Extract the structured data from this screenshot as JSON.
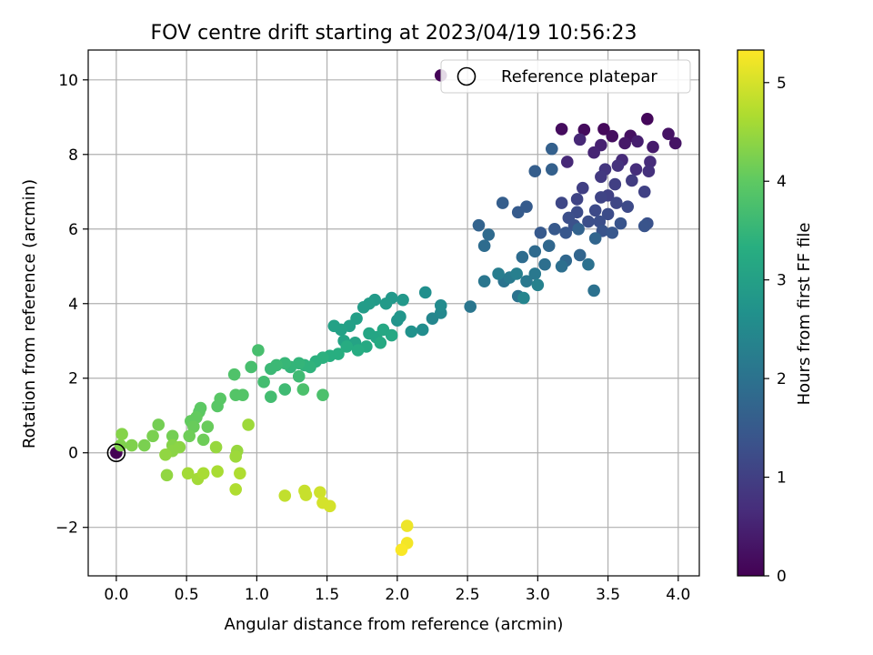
{
  "chart_data": {
    "type": "scatter",
    "title": "FOV centre drift starting at 2023/04/19 10:56:23",
    "xlabel": "Angular distance from reference (arcmin)",
    "ylabel": "Rotation from reference (arcmin)",
    "xlim": [
      -0.2,
      4.15
    ],
    "ylim": [
      -3.3,
      10.8
    ],
    "xticks": [
      "0.0",
      "0.5",
      "1.0",
      "1.5",
      "2.0",
      "2.5",
      "3.0",
      "3.5",
      "4.0"
    ],
    "yticks": [
      "−2",
      "0",
      "2",
      "4",
      "6",
      "8",
      "10"
    ],
    "xtick_values": [
      0,
      0.5,
      1.0,
      1.5,
      2.0,
      2.5,
      3.0,
      3.5,
      4.0
    ],
    "ytick_values": [
      -2,
      0,
      2,
      4,
      6,
      8,
      10
    ],
    "grid": true,
    "colormap": "viridis",
    "colorbar": {
      "label": "Hours from first FF file",
      "range": [
        0,
        5.33
      ],
      "ticks": [
        "0",
        "1",
        "2",
        "3",
        "4",
        "5"
      ],
      "tick_values": [
        0,
        1,
        2,
        3,
        4,
        5
      ]
    },
    "legend": {
      "position": "top-right",
      "entries": [
        {
          "label": "Reference platepar",
          "marker": "open-circle"
        }
      ]
    },
    "reference_point": {
      "x": 0.0,
      "y": 0.0
    },
    "points": [
      [
        0.0,
        0.0,
        0.0
      ],
      [
        2.31,
        10.12,
        0.05
      ],
      [
        3.78,
        8.95,
        0.1
      ],
      [
        3.47,
        8.68,
        0.12
      ],
      [
        3.33,
        8.66,
        0.15
      ],
      [
        3.17,
        8.68,
        0.17
      ],
      [
        3.53,
        8.49,
        0.2
      ],
      [
        3.66,
        8.5,
        0.25
      ],
      [
        3.93,
        8.55,
        0.28
      ],
      [
        3.98,
        8.3,
        0.3
      ],
      [
        3.62,
        8.3,
        0.35
      ],
      [
        3.82,
        8.2,
        0.4
      ],
      [
        3.71,
        8.35,
        0.45
      ],
      [
        3.45,
        8.25,
        0.5
      ],
      [
        3.4,
        8.05,
        0.55
      ],
      [
        3.3,
        8.4,
        0.6
      ],
      [
        3.21,
        7.8,
        0.62
      ],
      [
        3.6,
        7.85,
        0.65
      ],
      [
        3.8,
        7.8,
        0.68
      ],
      [
        3.7,
        7.6,
        0.7
      ],
      [
        3.79,
        7.55,
        0.75
      ],
      [
        3.57,
        7.7,
        0.8
      ],
      [
        3.48,
        7.6,
        0.85
      ],
      [
        3.45,
        7.4,
        0.9
      ],
      [
        3.67,
        7.3,
        0.95
      ],
      [
        3.32,
        7.1,
        1.0
      ],
      [
        3.55,
        7.2,
        1.0
      ],
      [
        3.76,
        7.0,
        1.05
      ],
      [
        3.5,
        6.9,
        1.05
      ],
      [
        3.45,
        6.85,
        1.1
      ],
      [
        3.28,
        6.8,
        1.1
      ],
      [
        3.17,
        6.7,
        1.15
      ],
      [
        3.56,
        6.7,
        1.15
      ],
      [
        3.64,
        6.6,
        1.2
      ],
      [
        3.41,
        6.5,
        1.2
      ],
      [
        3.28,
        6.45,
        1.25
      ],
      [
        3.5,
        6.4,
        1.25
      ],
      [
        3.36,
        6.2,
        1.3
      ],
      [
        3.44,
        6.2,
        1.3
      ],
      [
        3.22,
        6.3,
        1.3
      ],
      [
        3.26,
        6.1,
        1.35
      ],
      [
        3.78,
        6.15,
        1.35
      ],
      [
        3.76,
        6.08,
        1.4
      ],
      [
        3.59,
        6.15,
        1.4
      ],
      [
        3.46,
        5.95,
        1.4
      ],
      [
        3.53,
        5.9,
        1.45
      ],
      [
        3.2,
        5.9,
        1.45
      ],
      [
        3.12,
        6.0,
        1.5
      ],
      [
        3.02,
        5.9,
        1.5
      ],
      [
        2.86,
        6.45,
        1.55
      ],
      [
        2.92,
        6.6,
        1.55
      ],
      [
        2.75,
        6.7,
        1.6
      ],
      [
        2.98,
        7.55,
        1.6
      ],
      [
        3.1,
        7.6,
        1.65
      ],
      [
        3.1,
        8.15,
        1.65
      ],
      [
        2.58,
        6.1,
        1.7
      ],
      [
        3.29,
        6.0,
        1.7
      ],
      [
        3.41,
        5.75,
        1.75
      ],
      [
        3.3,
        5.3,
        1.75
      ],
      [
        3.2,
        5.15,
        1.8
      ],
      [
        3.08,
        5.55,
        1.8
      ],
      [
        2.98,
        5.4,
        1.85
      ],
      [
        2.65,
        5.85,
        1.85
      ],
      [
        2.62,
        5.55,
        1.9
      ],
      [
        2.89,
        5.25,
        1.9
      ],
      [
        3.05,
        5.05,
        1.95
      ],
      [
        3.17,
        5.0,
        1.95
      ],
      [
        3.36,
        5.05,
        2.0
      ],
      [
        3.4,
        4.35,
        2.0
      ],
      [
        2.86,
        4.2,
        2.05
      ],
      [
        2.76,
        4.6,
        2.05
      ],
      [
        2.62,
        4.6,
        2.1
      ],
      [
        2.52,
        3.92,
        2.1
      ],
      [
        2.98,
        4.8,
        2.15
      ],
      [
        2.92,
        4.6,
        2.15
      ],
      [
        2.8,
        4.7,
        2.2
      ],
      [
        2.72,
        4.8,
        2.25
      ],
      [
        2.85,
        4.8,
        2.3
      ],
      [
        3.0,
        4.5,
        2.35
      ],
      [
        2.9,
        4.15,
        2.4
      ],
      [
        2.25,
        3.6,
        2.45
      ],
      [
        2.31,
        3.75,
        2.5
      ],
      [
        2.31,
        3.95,
        2.55
      ],
      [
        2.18,
        3.3,
        2.6
      ],
      [
        2.2,
        4.3,
        2.65
      ],
      [
        2.1,
        3.25,
        2.7
      ],
      [
        2.0,
        3.55,
        2.75
      ],
      [
        2.02,
        3.65,
        2.8
      ],
      [
        2.04,
        4.1,
        2.85
      ],
      [
        1.96,
        4.15,
        2.85
      ],
      [
        1.92,
        4.0,
        2.9
      ],
      [
        1.84,
        4.1,
        2.9
      ],
      [
        1.8,
        4.0,
        2.95
      ],
      [
        1.76,
        3.9,
        2.95
      ],
      [
        1.71,
        3.6,
        3.0
      ],
      [
        1.66,
        3.4,
        3.0
      ],
      [
        1.6,
        3.3,
        3.05
      ],
      [
        1.55,
        3.4,
        3.05
      ],
      [
        1.62,
        3.0,
        3.1
      ],
      [
        1.7,
        2.95,
        3.1
      ],
      [
        1.8,
        3.2,
        3.15
      ],
      [
        1.85,
        3.1,
        3.15
      ],
      [
        1.9,
        3.3,
        3.2
      ],
      [
        1.96,
        3.15,
        3.2
      ],
      [
        1.88,
        2.95,
        3.25
      ],
      [
        1.78,
        2.85,
        3.25
      ],
      [
        1.72,
        2.75,
        3.3
      ],
      [
        1.64,
        2.85,
        3.3
      ],
      [
        1.58,
        2.65,
        3.35
      ],
      [
        1.52,
        2.6,
        3.35
      ],
      [
        1.47,
        2.55,
        3.4
      ],
      [
        1.42,
        2.45,
        3.4
      ],
      [
        1.38,
        2.3,
        3.45
      ],
      [
        1.34,
        2.35,
        3.45
      ],
      [
        1.3,
        2.4,
        3.5
      ],
      [
        1.24,
        2.3,
        3.5
      ],
      [
        1.2,
        2.4,
        3.55
      ],
      [
        1.14,
        2.35,
        3.6
      ],
      [
        1.1,
        2.25,
        3.6
      ],
      [
        1.3,
        2.05,
        3.65
      ],
      [
        1.2,
        1.7,
        3.65
      ],
      [
        1.1,
        1.5,
        3.7
      ],
      [
        1.05,
        1.9,
        3.7
      ],
      [
        0.96,
        2.3,
        3.75
      ],
      [
        1.01,
        2.75,
        3.75
      ],
      [
        1.47,
        1.55,
        3.8
      ],
      [
        1.33,
        1.7,
        3.8
      ],
      [
        0.84,
        2.1,
        3.85
      ],
      [
        0.85,
        1.55,
        3.9
      ],
      [
        0.9,
        1.55,
        3.9
      ],
      [
        0.74,
        1.45,
        3.95
      ],
      [
        0.72,
        1.25,
        3.95
      ],
      [
        0.59,
        1.1,
        4.0
      ],
      [
        0.6,
        1.2,
        4.0
      ],
      [
        0.57,
        0.95,
        4.05
      ],
      [
        0.53,
        0.85,
        4.05
      ],
      [
        0.65,
        0.7,
        4.1
      ],
      [
        0.55,
        0.7,
        4.1
      ],
      [
        0.62,
        0.35,
        4.15
      ],
      [
        0.52,
        0.45,
        4.15
      ],
      [
        0.4,
        0.45,
        4.2
      ],
      [
        0.3,
        0.75,
        4.2
      ],
      [
        0.26,
        0.45,
        4.25
      ],
      [
        0.2,
        0.2,
        4.25
      ],
      [
        0.11,
        0.2,
        4.3
      ],
      [
        0.03,
        0.2,
        4.3
      ],
      [
        0.04,
        0.5,
        4.35
      ],
      [
        0.4,
        0.2,
        4.35
      ],
      [
        0.4,
        0.05,
        4.4
      ],
      [
        0.45,
        0.15,
        4.4
      ],
      [
        0.35,
        -0.05,
        4.45
      ],
      [
        0.36,
        -0.6,
        4.45
      ],
      [
        0.71,
        0.15,
        4.5
      ],
      [
        0.86,
        0.05,
        4.5
      ],
      [
        0.85,
        -0.1,
        4.55
      ],
      [
        0.94,
        0.75,
        4.55
      ],
      [
        0.51,
        -0.55,
        4.6
      ],
      [
        0.58,
        -0.7,
        4.6
      ],
      [
        0.62,
        -0.55,
        4.65
      ],
      [
        0.72,
        -0.5,
        4.65
      ],
      [
        0.88,
        -0.55,
        4.7
      ],
      [
        0.85,
        -0.98,
        4.7
      ],
      [
        1.2,
        -1.15,
        4.85
      ],
      [
        1.34,
        -1.02,
        4.9
      ],
      [
        1.35,
        -1.13,
        4.9
      ],
      [
        1.45,
        -1.06,
        4.95
      ],
      [
        1.47,
        -1.34,
        5.0
      ],
      [
        1.52,
        -1.43,
        5.0
      ],
      [
        2.07,
        -1.96,
        5.2
      ],
      [
        2.07,
        -2.42,
        5.25
      ],
      [
        2.03,
        -2.6,
        5.3
      ]
    ]
  }
}
